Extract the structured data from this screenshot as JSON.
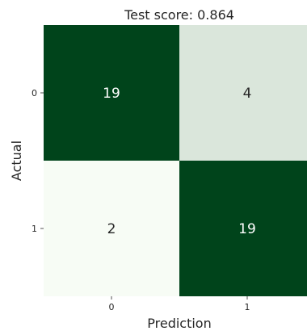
{
  "chart_data": {
    "type": "heatmap",
    "title": "Test score: 0.864",
    "xlabel": "Prediction",
    "ylabel": "Actual",
    "x_categories": [
      "0",
      "1"
    ],
    "y_categories": [
      "0",
      "1"
    ],
    "values": [
      [
        19,
        4
      ],
      [
        2,
        19
      ]
    ],
    "colors": {
      "high": "#00441b",
      "low": "#f7fcf5",
      "high_text": "#ffffff",
      "low_text": "#262626"
    },
    "colorbar": false,
    "grid": false
  }
}
